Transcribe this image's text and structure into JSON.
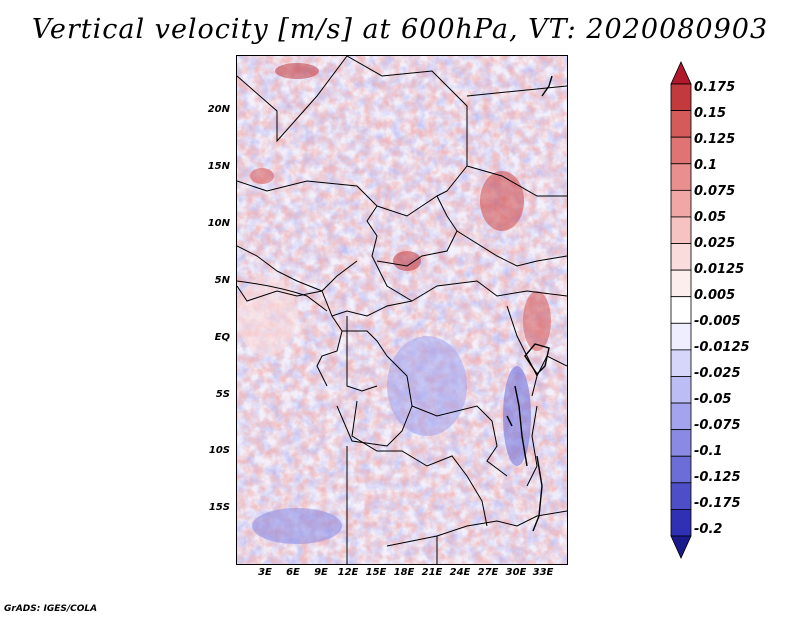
{
  "title": "Vertical velocity [m/s] at 600hPa, VT: 2020080903",
  "footer": "GrADS: IGES/COLA",
  "map": {
    "lat_labels": [
      "20N",
      "15N",
      "10N",
      "5N",
      "EQ",
      "5S",
      "10S",
      "15S"
    ],
    "lon_labels": [
      "3E",
      "6E",
      "9E",
      "12E",
      "15E",
      "18E",
      "21E",
      "24E",
      "27E",
      "30E",
      "33E"
    ],
    "lon_range": [
      0,
      35
    ],
    "lat_range": [
      -20,
      25
    ]
  },
  "colorbar": {
    "labels": [
      "0.175",
      "0.15",
      "0.125",
      "0.1",
      "0.075",
      "0.05",
      "0.025",
      "0.0125",
      "0.005",
      "-0.005",
      "-0.0125",
      "-0.025",
      "-0.05",
      "-0.075",
      "-0.1",
      "-0.125",
      "-0.175",
      "-0.2"
    ],
    "colors": [
      "#b2182b",
      "#c23a3e",
      "#d55a5a",
      "#e07373",
      "#ea8f8f",
      "#f2a7a7",
      "#f7c2c2",
      "#fbdcdc",
      "#fdeeee",
      "#ffffff",
      "#eeeeff",
      "#d6d6fb",
      "#bdbdf5",
      "#a3a3ee",
      "#8a8ae4",
      "#6d6dd8",
      "#4e4ec8",
      "#3030b4",
      "#1a1a8c"
    ]
  }
}
